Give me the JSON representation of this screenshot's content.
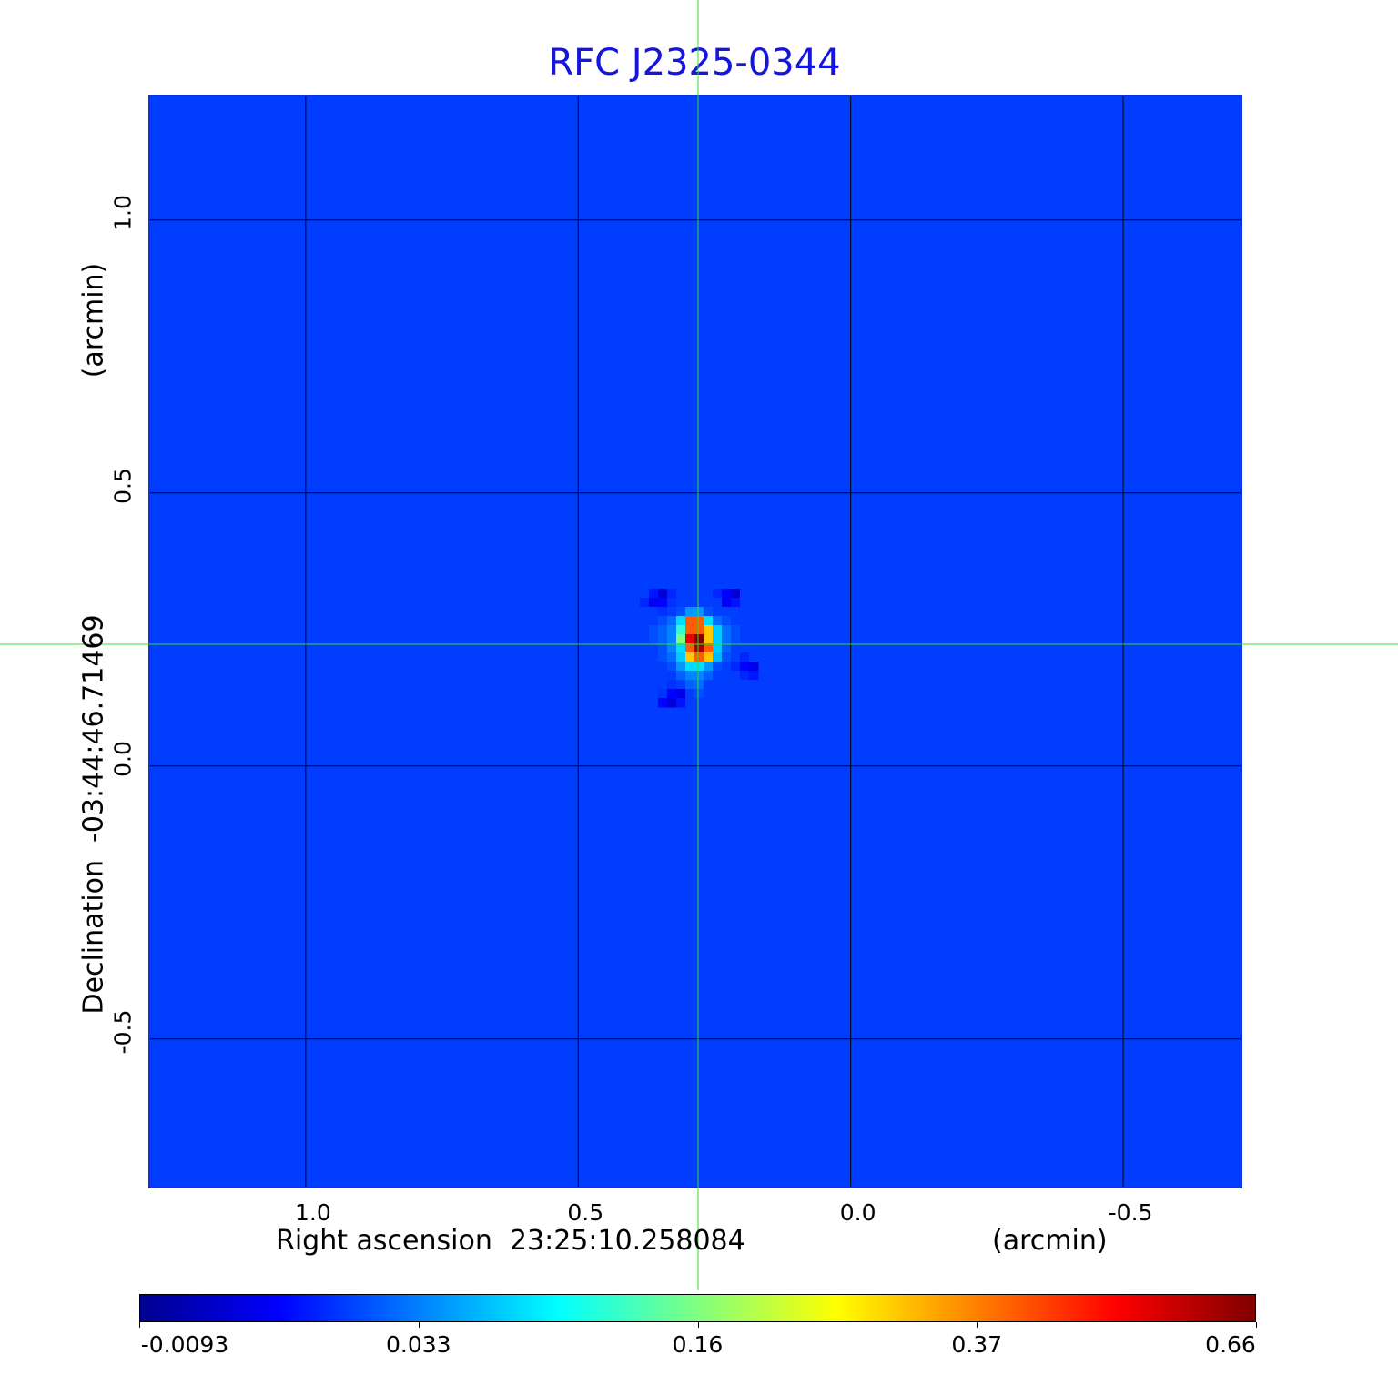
{
  "chart_data": {
    "type": "heatmap",
    "title": "RFC J2325-0344",
    "xlabel": "Right ascension  23:25:10.258084",
    "xunit": "(arcmin)",
    "ylabel": "Declination  -03:44:46.71469",
    "yunit": "(arcmin)",
    "xlim": [
      1.287,
      -0.717
    ],
    "ylim": [
      -0.772,
      1.228
    ],
    "xticks": [
      1.0,
      0.5,
      0.0,
      -0.5
    ],
    "xtick_labels": [
      "1.0",
      "0.5",
      "0.0",
      "-0.5"
    ],
    "yticks": [
      1.0,
      0.5,
      0.0,
      -0.5
    ],
    "ytick_labels": [
      "1.0",
      "0.5",
      "0.0",
      "-0.5"
    ],
    "grid": true,
    "crosshair": {
      "x": 0.28,
      "y": 0.223,
      "color": "#33dd33"
    },
    "colormap": "jet",
    "colorbar": {
      "placement": "bottom",
      "ticks": [
        -0.0093,
        0.033,
        0.16,
        0.37,
        0.66
      ],
      "tick_labels": [
        "-0.0093",
        "0.033",
        "0.16",
        "0.37",
        "0.66"
      ]
    },
    "background_value": 0.022,
    "central_region": {
      "cell_arcsec": 1.0,
      "values": [
        [
          0.022,
          0.022,
          0.022,
          0.022,
          0.022,
          0.022,
          0.022,
          0.022,
          0.022,
          0.022,
          0.022,
          0.022,
          0.022,
          0.022
        ],
        [
          0.022,
          0.022,
          0.015,
          0.005,
          0.018,
          0.022,
          0.022,
          0.022,
          0.022,
          0.018,
          0.012,
          0.005,
          0.022,
          0.022
        ],
        [
          0.022,
          0.018,
          0.01,
          0.012,
          0.02,
          0.022,
          0.022,
          0.022,
          0.022,
          0.022,
          0.01,
          0.015,
          0.022,
          0.022
        ],
        [
          0.022,
          0.022,
          0.022,
          0.02,
          0.022,
          0.025,
          0.045,
          0.045,
          0.025,
          0.022,
          0.022,
          0.022,
          0.022,
          0.022
        ],
        [
          0.022,
          0.022,
          0.022,
          0.025,
          0.03,
          0.08,
          0.41,
          0.41,
          0.08,
          0.03,
          0.025,
          0.022,
          0.022,
          0.022
        ],
        [
          0.022,
          0.022,
          0.025,
          0.028,
          0.035,
          0.12,
          0.41,
          0.41,
          0.31,
          0.07,
          0.03,
          0.025,
          0.022,
          0.022
        ],
        [
          0.022,
          0.022,
          0.025,
          0.028,
          0.035,
          0.16,
          0.54,
          0.66,
          0.31,
          0.07,
          0.03,
          0.025,
          0.022,
          0.022
        ],
        [
          0.022,
          0.022,
          0.022,
          0.025,
          0.035,
          0.08,
          0.41,
          0.62,
          0.41,
          0.07,
          0.028,
          0.022,
          0.022,
          0.022
        ],
        [
          0.022,
          0.022,
          0.022,
          0.025,
          0.03,
          0.07,
          0.31,
          0.41,
          0.31,
          0.06,
          0.025,
          0.022,
          0.018,
          0.022
        ],
        [
          0.022,
          0.022,
          0.022,
          0.022,
          0.025,
          0.045,
          0.08,
          0.08,
          0.045,
          0.025,
          0.022,
          0.018,
          0.012,
          0.008
        ],
        [
          0.022,
          0.022,
          0.022,
          0.022,
          0.022,
          0.028,
          0.035,
          0.035,
          0.028,
          0.022,
          0.022,
          0.022,
          0.018,
          0.015
        ],
        [
          0.022,
          0.022,
          0.022,
          0.022,
          0.02,
          0.022,
          0.028,
          0.03,
          0.022,
          0.022,
          0.022,
          0.022,
          0.022,
          0.022
        ],
        [
          0.022,
          0.022,
          0.022,
          0.02,
          0.012,
          0.008,
          0.022,
          0.025,
          0.022,
          0.022,
          0.022,
          0.022,
          0.022,
          0.022
        ],
        [
          0.022,
          0.022,
          0.022,
          0.012,
          0.005,
          0.015,
          0.022,
          0.022,
          0.022,
          0.022,
          0.022,
          0.022,
          0.022,
          0.022
        ]
      ]
    }
  }
}
